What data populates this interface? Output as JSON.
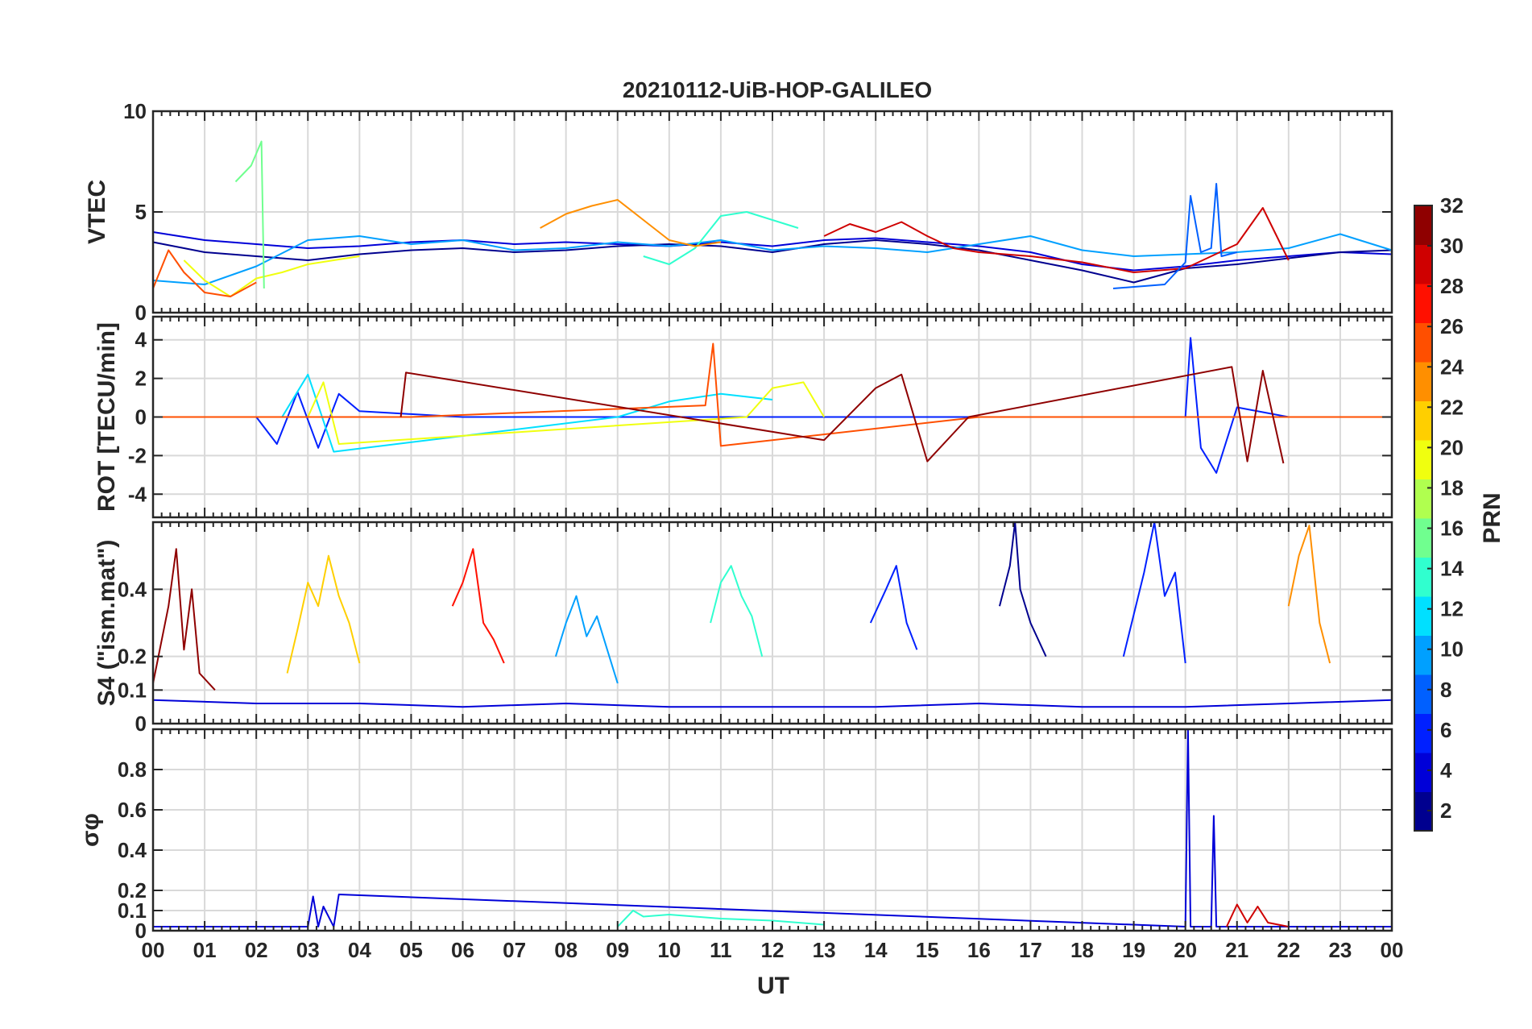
{
  "chart_data": {
    "type": "line",
    "title": "20210112-UiB-HOP-GALILEO",
    "xlabel": "UT",
    "x_range": [
      0,
      24
    ],
    "x_tick_labels": [
      "00",
      "01",
      "02",
      "03",
      "04",
      "05",
      "06",
      "07",
      "08",
      "09",
      "10",
      "11",
      "12",
      "13",
      "14",
      "15",
      "16",
      "17",
      "18",
      "19",
      "20",
      "21",
      "22",
      "23",
      "00"
    ],
    "colorbar": {
      "label": "PRN",
      "range": [
        1,
        32
      ],
      "ticks": [
        2,
        4,
        6,
        8,
        10,
        12,
        14,
        16,
        18,
        20,
        22,
        24,
        26,
        28,
        30,
        32
      ],
      "colormap": "jet",
      "colors": [
        "#00008f",
        "#0000d8",
        "#0020ff",
        "#0060ff",
        "#00a0ff",
        "#00e0ff",
        "#30ffcf",
        "#70ff8f",
        "#b0ff4f",
        "#f0ff0f",
        "#ffcf00",
        "#ff8f00",
        "#ff4f00",
        "#ff1000",
        "#cf0000",
        "#8f0000"
      ]
    },
    "panels": [
      {
        "name": "vtec",
        "ylabel": "VTEC",
        "ylim": [
          0,
          10
        ],
        "yticks": [
          0,
          5,
          10
        ],
        "ytick_labels": [
          "0",
          "5",
          "10"
        ],
        "series": [
          {
            "prn": 3,
            "x": [
              0,
              1,
              2,
              3,
              4,
              5,
              6,
              7,
              8,
              9,
              10,
              11,
              12,
              13,
              14,
              15,
              16,
              17,
              18,
              19,
              20,
              21,
              22,
              23,
              24
            ],
            "y": [
              4.0,
              3.6,
              3.4,
              3.2,
              3.3,
              3.5,
              3.6,
              3.4,
              3.5,
              3.4,
              3.3,
              3.5,
              3.3,
              3.6,
              3.7,
              3.5,
              3.3,
              3.0,
              2.4,
              2.1,
              2.3,
              2.6,
              2.8,
              3.0,
              2.9
            ]
          },
          {
            "prn": 1,
            "x": [
              0,
              1,
              2,
              3,
              4,
              5,
              6,
              7,
              8,
              9,
              10,
              11,
              12,
              13,
              14,
              15,
              16,
              17,
              18,
              19,
              20,
              21,
              22,
              23,
              24
            ],
            "y": [
              3.5,
              3.0,
              2.8,
              2.6,
              2.9,
              3.1,
              3.2,
              3.0,
              3.1,
              3.3,
              3.4,
              3.3,
              3.0,
              3.4,
              3.6,
              3.4,
              3.1,
              2.6,
              2.1,
              1.5,
              2.2,
              2.4,
              2.7,
              3.0,
              3.1
            ]
          },
          {
            "prn": 10,
            "x": [
              0,
              1,
              2,
              3,
              4,
              5,
              6,
              7,
              8,
              9,
              10,
              11,
              12,
              13,
              14,
              15,
              16,
              17,
              18,
              19,
              20,
              21,
              22,
              23,
              24
            ],
            "y": [
              1.6,
              1.4,
              2.3,
              3.6,
              3.8,
              3.4,
              3.6,
              3.1,
              3.2,
              3.5,
              3.3,
              3.6,
              3.1,
              3.3,
              3.2,
              3.0,
              3.4,
              3.8,
              3.1,
              2.8,
              2.9,
              3.0,
              3.2,
              3.9,
              3.1
            ]
          },
          {
            "prn": 13,
            "x": [
              9.5,
              10,
              10.5,
              11,
              11.5,
              12,
              12.5
            ],
            "y": [
              2.8,
              2.4,
              3.2,
              4.8,
              5.0,
              4.6,
              4.2
            ]
          },
          {
            "prn": 20,
            "x": [
              0.6,
              1,
              1.5,
              2,
              2.5,
              3,
              3.5,
              4
            ],
            "y": [
              2.6,
              1.6,
              0.8,
              1.7,
              2.0,
              2.4,
              2.6,
              2.8
            ]
          },
          {
            "prn": 24,
            "x": [
              7.5,
              8,
              8.5,
              9,
              9.5,
              10,
              10.5,
              11
            ],
            "y": [
              4.2,
              4.9,
              5.3,
              5.6,
              4.6,
              3.6,
              3.3,
              3.5
            ]
          },
          {
            "prn": 26,
            "x": [
              0,
              0.3,
              0.6,
              1,
              1.5,
              2
            ],
            "y": [
              1.2,
              3.1,
              2.0,
              1.0,
              0.8,
              1.5
            ]
          },
          {
            "prn": 30,
            "x": [
              13,
              13.5,
              14,
              14.5,
              15,
              15.5,
              16,
              17,
              18,
              19,
              20,
              21,
              21.5,
              22
            ],
            "y": [
              3.8,
              4.4,
              4.0,
              4.5,
              3.8,
              3.2,
              3.0,
              2.8,
              2.5,
              2.0,
              2.2,
              3.4,
              5.2,
              2.6
            ]
          },
          {
            "prn": 16,
            "x": [
              1.6,
              1.9,
              2.1,
              2.15
            ],
            "y": [
              6.5,
              7.3,
              8.5,
              1.2
            ]
          },
          {
            "prn": 7,
            "x": [
              18.6,
              19.6,
              20.0,
              20.1,
              20.3,
              20.5,
              20.6,
              20.7,
              21.0
            ],
            "y": [
              1.2,
              1.4,
              2.5,
              5.8,
              3.0,
              3.2,
              6.4,
              2.8,
              3.0
            ]
          }
        ]
      },
      {
        "name": "rot",
        "ylabel": "ROT [TECU/min]",
        "ylim": [
          -5.2,
          5.2
        ],
        "yticks": [
          -4,
          -2,
          0,
          2,
          4
        ],
        "ytick_labels": [
          "-4",
          "-2",
          "0",
          "2",
          "4"
        ],
        "series": [
          {
            "prn": 5,
            "x": [
              0,
              2,
              2.4,
              2.8,
              3.2,
              3.6,
              4,
              6,
              10,
              14,
              18,
              20,
              20.1,
              20.3,
              20.6,
              21,
              22,
              24
            ],
            "y": [
              0,
              0,
              -1.4,
              1.3,
              -1.6,
              1.2,
              0.3,
              0,
              0,
              0,
              0,
              0,
              4.1,
              -1.6,
              -2.9,
              0.5,
              0,
              0
            ]
          },
          {
            "prn": 12,
            "x": [
              2.5,
              3,
              3.5,
              9,
              10,
              11,
              12
            ],
            "y": [
              0,
              2.2,
              -1.8,
              0,
              0.8,
              1.2,
              0.9
            ]
          },
          {
            "prn": 19,
            "x": [
              3,
              3.3,
              3.6,
              11.5,
              12,
              12.6,
              13
            ],
            "y": [
              0,
              1.8,
              -1.4,
              0,
              1.5,
              1.8,
              0
            ]
          },
          {
            "prn": 25,
            "x": [
              0,
              5,
              10.7,
              10.85,
              11,
              16,
              24
            ],
            "y": [
              0,
              0,
              0.6,
              3.8,
              -1.5,
              0,
              0
            ]
          },
          {
            "prn": 31,
            "x": [
              4.8,
              4.9,
              13,
              14,
              14.5,
              15,
              15.8,
              20.9,
              21.2,
              21.5,
              21.9
            ],
            "y": [
              0,
              2.3,
              -1.2,
              1.5,
              2.2,
              -2.3,
              0,
              2.6,
              -2.3,
              2.4,
              -2.4
            ]
          }
        ]
      },
      {
        "name": "s4",
        "ylabel": "S4 (\"ism.mat\")",
        "ylim": [
          0,
          0.6
        ],
        "yticks": [
          0,
          0.1,
          0.2,
          0.4
        ],
        "ytick_labels": [
          "0",
          "0.1",
          "0.2",
          "0.4"
        ],
        "series": [
          {
            "prn": 3,
            "x": [
              0,
              2,
              4,
              6,
              8,
              10,
              12,
              14,
              16,
              18,
              20,
              22,
              24
            ],
            "y": [
              0.07,
              0.06,
              0.06,
              0.05,
              0.06,
              0.05,
              0.05,
              0.05,
              0.06,
              0.05,
              0.05,
              0.06,
              0.07
            ]
          },
          {
            "prn": 31,
            "x": [
              0,
              0.3,
              0.45,
              0.6,
              0.75,
              0.9,
              1.2
            ],
            "y": [
              0.12,
              0.35,
              0.52,
              0.22,
              0.4,
              0.15,
              0.1
            ]
          },
          {
            "prn": 21,
            "x": [
              2.6,
              2.8,
              3.0,
              3.2,
              3.4,
              3.6,
              3.8,
              4.0
            ],
            "y": [
              0.15,
              0.28,
              0.42,
              0.35,
              0.5,
              0.38,
              0.3,
              0.18
            ]
          },
          {
            "prn": 27,
            "x": [
              5.8,
              6.0,
              6.2,
              6.4,
              6.6,
              6.8
            ],
            "y": [
              0.35,
              0.42,
              0.52,
              0.3,
              0.25,
              0.18
            ]
          },
          {
            "prn": 9,
            "x": [
              7.8,
              8.0,
              8.2,
              8.4,
              8.6,
              8.8,
              9.0
            ],
            "y": [
              0.2,
              0.3,
              0.38,
              0.26,
              0.32,
              0.22,
              0.12
            ]
          },
          {
            "prn": 13,
            "x": [
              10.8,
              11.0,
              11.2,
              11.4,
              11.6,
              11.8
            ],
            "y": [
              0.3,
              0.42,
              0.47,
              0.38,
              0.32,
              0.2
            ]
          },
          {
            "prn": 6,
            "x": [
              13.9,
              14.2,
              14.4,
              14.6,
              14.8
            ],
            "y": [
              0.3,
              0.4,
              0.47,
              0.3,
              0.22
            ]
          },
          {
            "prn": 2,
            "x": [
              16.4,
              16.6,
              16.7,
              16.8,
              17.0,
              17.3
            ],
            "y": [
              0.35,
              0.47,
              0.6,
              0.4,
              0.3,
              0.2
            ]
          },
          {
            "prn": 5,
            "x": [
              18.8,
              19.2,
              19.4,
              19.6,
              19.8,
              20.0
            ],
            "y": [
              0.2,
              0.45,
              0.6,
              0.38,
              0.45,
              0.18
            ]
          },
          {
            "prn": 23,
            "x": [
              22.0,
              22.2,
              22.4,
              22.6,
              22.8
            ],
            "y": [
              0.35,
              0.5,
              0.59,
              0.3,
              0.18
            ]
          }
        ]
      },
      {
        "name": "sigma_phi",
        "ylabel": "σφ",
        "ylim": [
          0,
          1
        ],
        "yticks": [
          0,
          0.1,
          0.2,
          0.4,
          0.6,
          0.8
        ],
        "ytick_labels": [
          "0",
          "0.1",
          "0.2",
          "0.4",
          "0.6",
          "0.8"
        ],
        "series": [
          {
            "prn": 3,
            "x": [
              0,
              3,
              3.1,
              3.2,
              3.3,
              3.5,
              3.6,
              20.0,
              20.05,
              20.1,
              20.15,
              20.5,
              20.55,
              20.6,
              24
            ],
            "y": [
              0.02,
              0.02,
              0.17,
              0.02,
              0.12,
              0.02,
              0.18,
              0.02,
              1.0,
              0.02,
              0.02,
              0.02,
              0.57,
              0.02,
              0.02
            ]
          },
          {
            "prn": 13,
            "x": [
              9,
              9.3,
              9.5,
              10,
              11,
              12,
              13
            ],
            "y": [
              0.02,
              0.1,
              0.07,
              0.08,
              0.06,
              0.05,
              0.03
            ]
          },
          {
            "prn": 30,
            "x": [
              20.8,
              21.0,
              21.2,
              21.4,
              21.6,
              22
            ],
            "y": [
              0.02,
              0.13,
              0.04,
              0.12,
              0.04,
              0.02
            ]
          }
        ]
      }
    ]
  }
}
